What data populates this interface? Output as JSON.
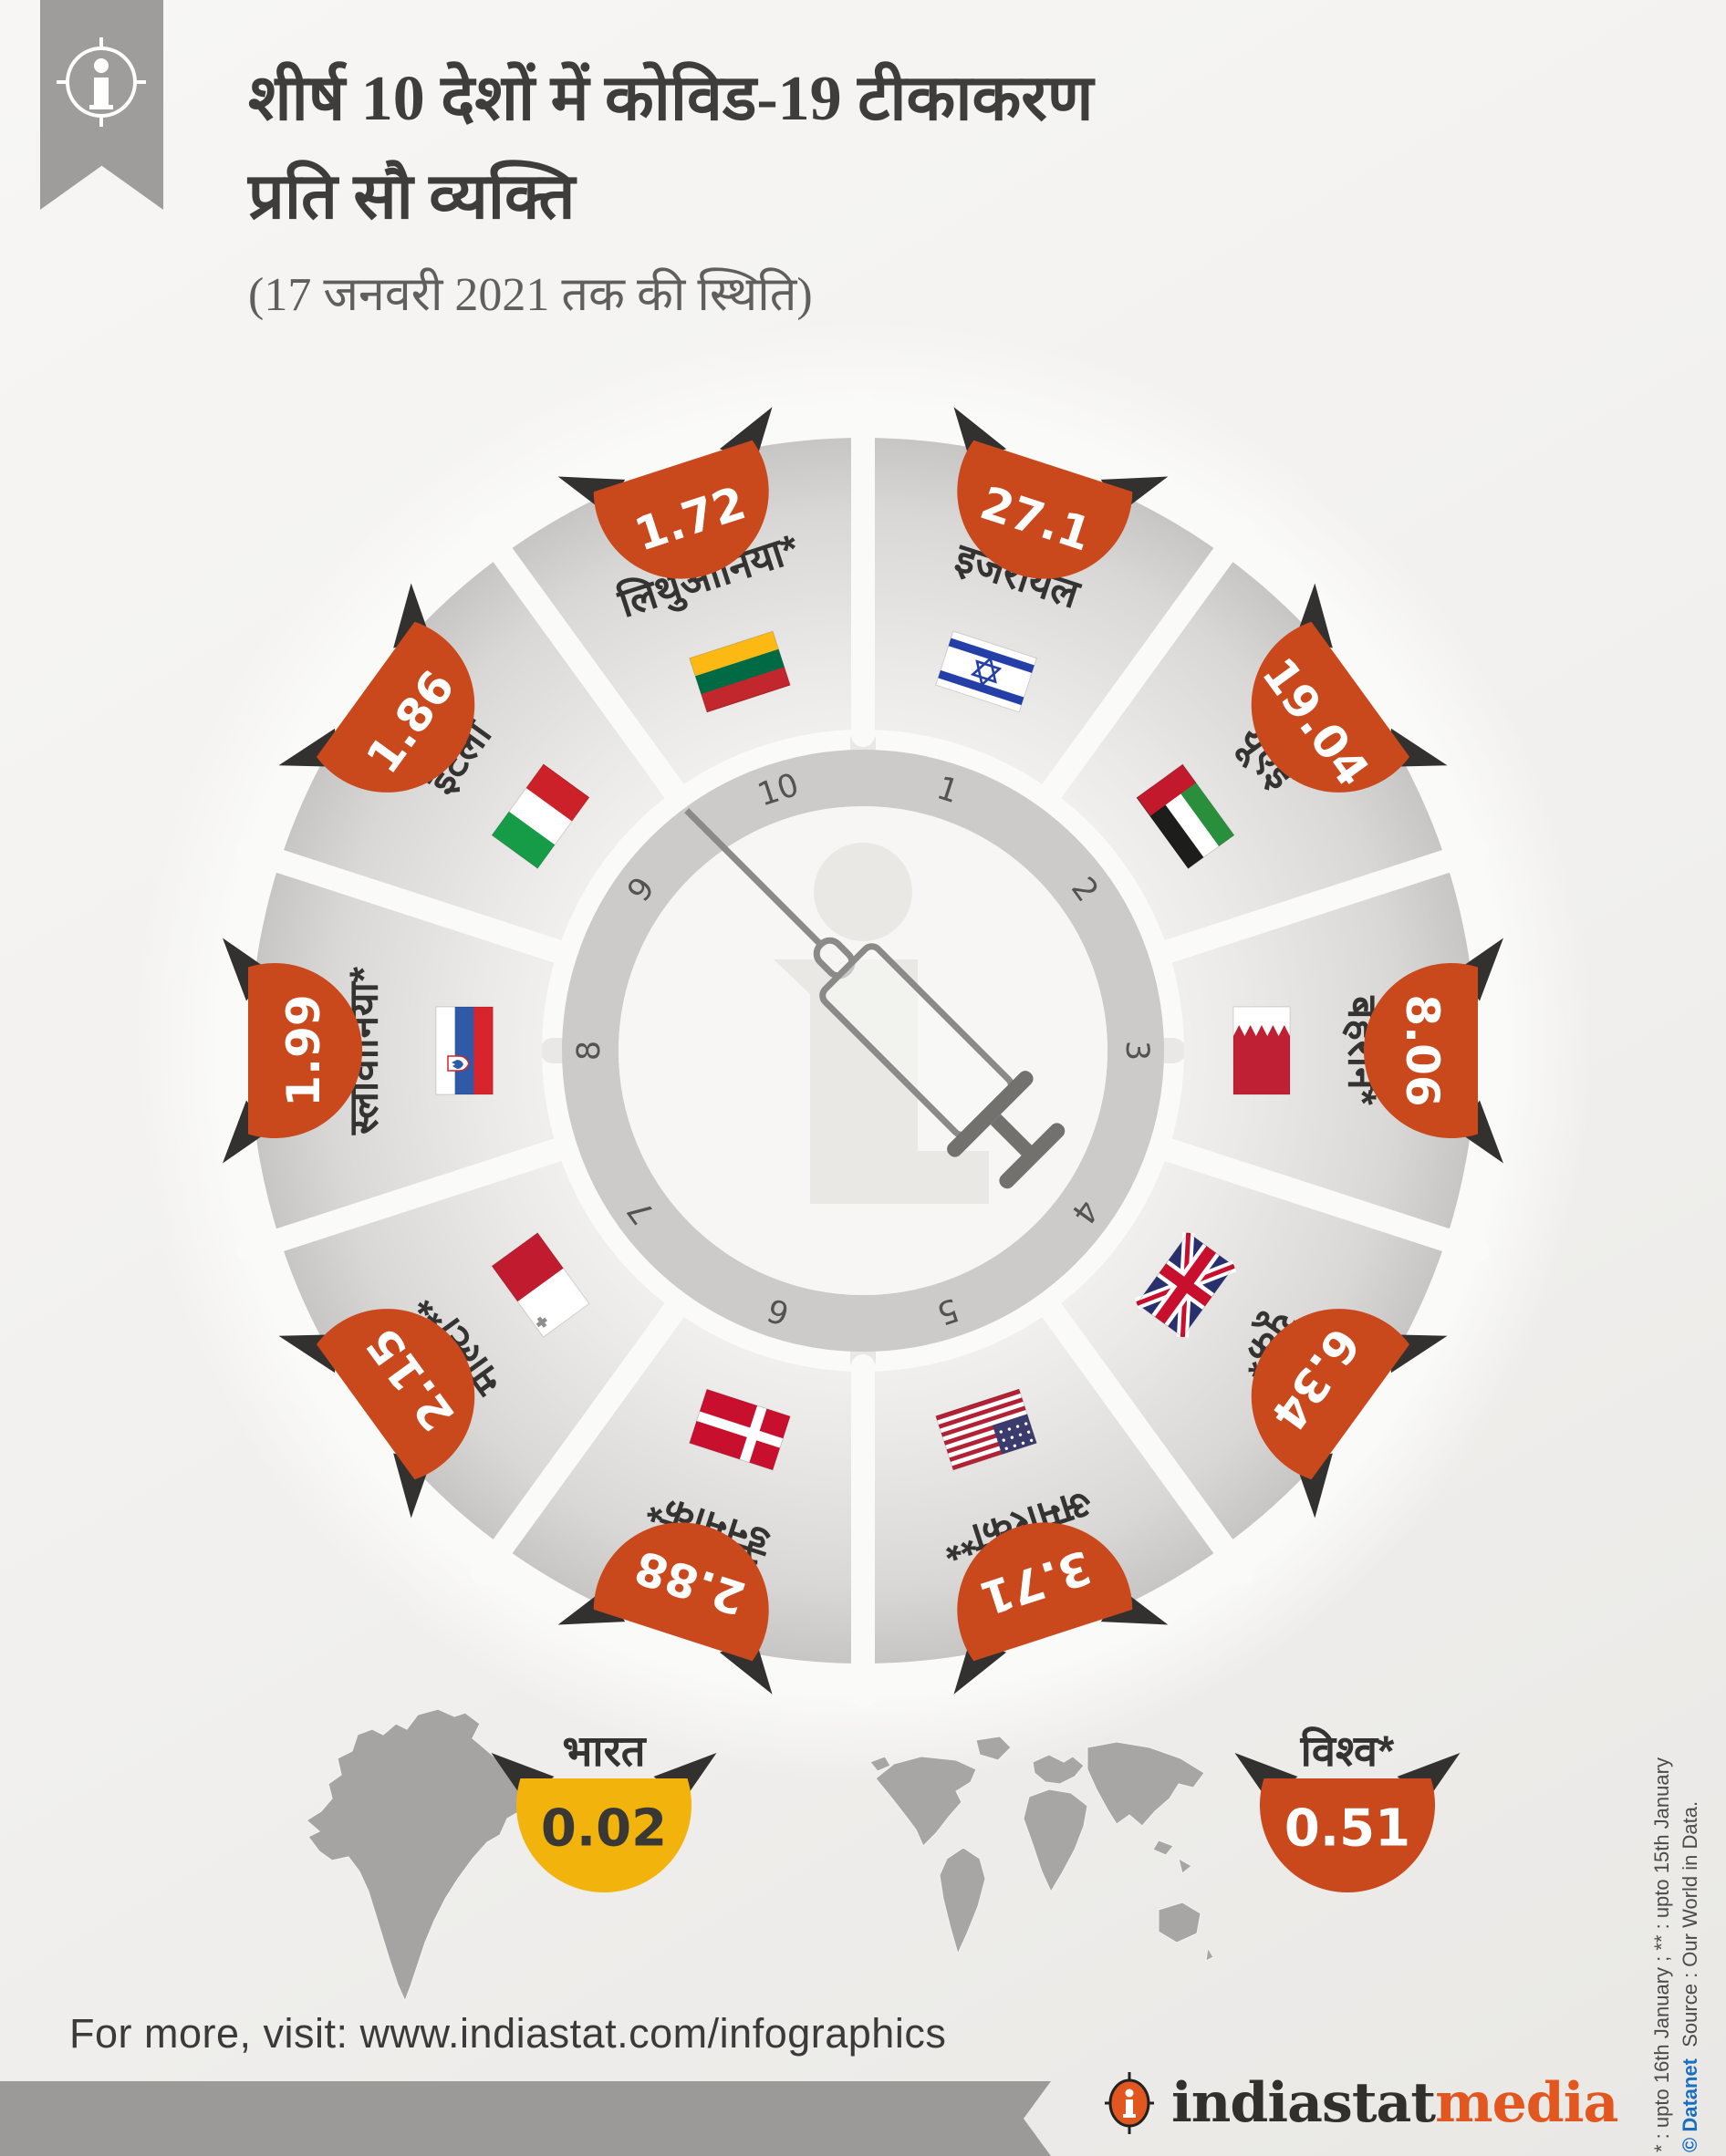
{
  "header": {
    "title_line1": "शीर्ष 10 देशों में कोविड-19 टीकाकरण",
    "title_line2": "प्रति सौ व्यक्ति",
    "subtitle": "(17 जनवरी 2021 तक की स्थिति)"
  },
  "chart_data": {
    "type": "circular-ranking-wheel",
    "title": "शीर्ष 10 देशों में कोविड-19 टीकाकरण प्रति सौ व्यक्ति (17 जनवरी 2021 तक की स्थिति)",
    "unit": "vaccination doses per hundred people",
    "badge_color": "#c9481c",
    "corner_color": "#33312f",
    "center_icon": "syringe-icon",
    "legend_position": "none",
    "countries": [
      {
        "rank": 1,
        "label": "इजरायल",
        "value": "27.1",
        "flag": "israel-flag"
      },
      {
        "rank": 2,
        "label": "यूएई",
        "value": "19.04",
        "flag": "uae-flag"
      },
      {
        "rank": 3,
        "label": "बहरीन*",
        "value": "8.06",
        "flag": "bahrain-flag"
      },
      {
        "rank": 4,
        "label": "यूके*",
        "value": "6.34",
        "flag": "uk-flag"
      },
      {
        "rank": 5,
        "label": "अमेरिका**",
        "value": "3.71",
        "flag": "usa-flag"
      },
      {
        "rank": 6,
        "label": "डेनमार्क*",
        "value": "2.88",
        "flag": "denmark-flag"
      },
      {
        "rank": 7,
        "label": "माल्टा**",
        "value": "2.15",
        "flag": "malta-flag"
      },
      {
        "rank": 8,
        "label": "स्लोवानिया*",
        "value": "1.99",
        "flag": "slovenia-flag"
      },
      {
        "rank": 9,
        "label": "इटली",
        "value": "1.86",
        "flag": "italy-flag"
      },
      {
        "rank": 10,
        "label": "लिथुआनिया*",
        "value": "1.72",
        "flag": "lithuania-flag"
      }
    ],
    "comparisons": [
      {
        "label": "भारत",
        "value": "0.02",
        "badge_color": "#f2b30d",
        "value_color": "#3a3835",
        "map": "india-map"
      },
      {
        "label": "विश्व*",
        "value": "0.51",
        "badge_color": "#c9481c",
        "value_color": "#ffffff",
        "map": "world-map"
      }
    ]
  },
  "footnotes": {
    "asterisk_note": "* : upto 16th January ; ** : upto 15th January",
    "copyright": "© Datanet",
    "source": "Source : Our World in Data."
  },
  "footer": {
    "visit_text": "For more, visit: www.indiastat.com/infographics",
    "brand_text_dark": "indiastat",
    "brand_text_orange": "media"
  }
}
